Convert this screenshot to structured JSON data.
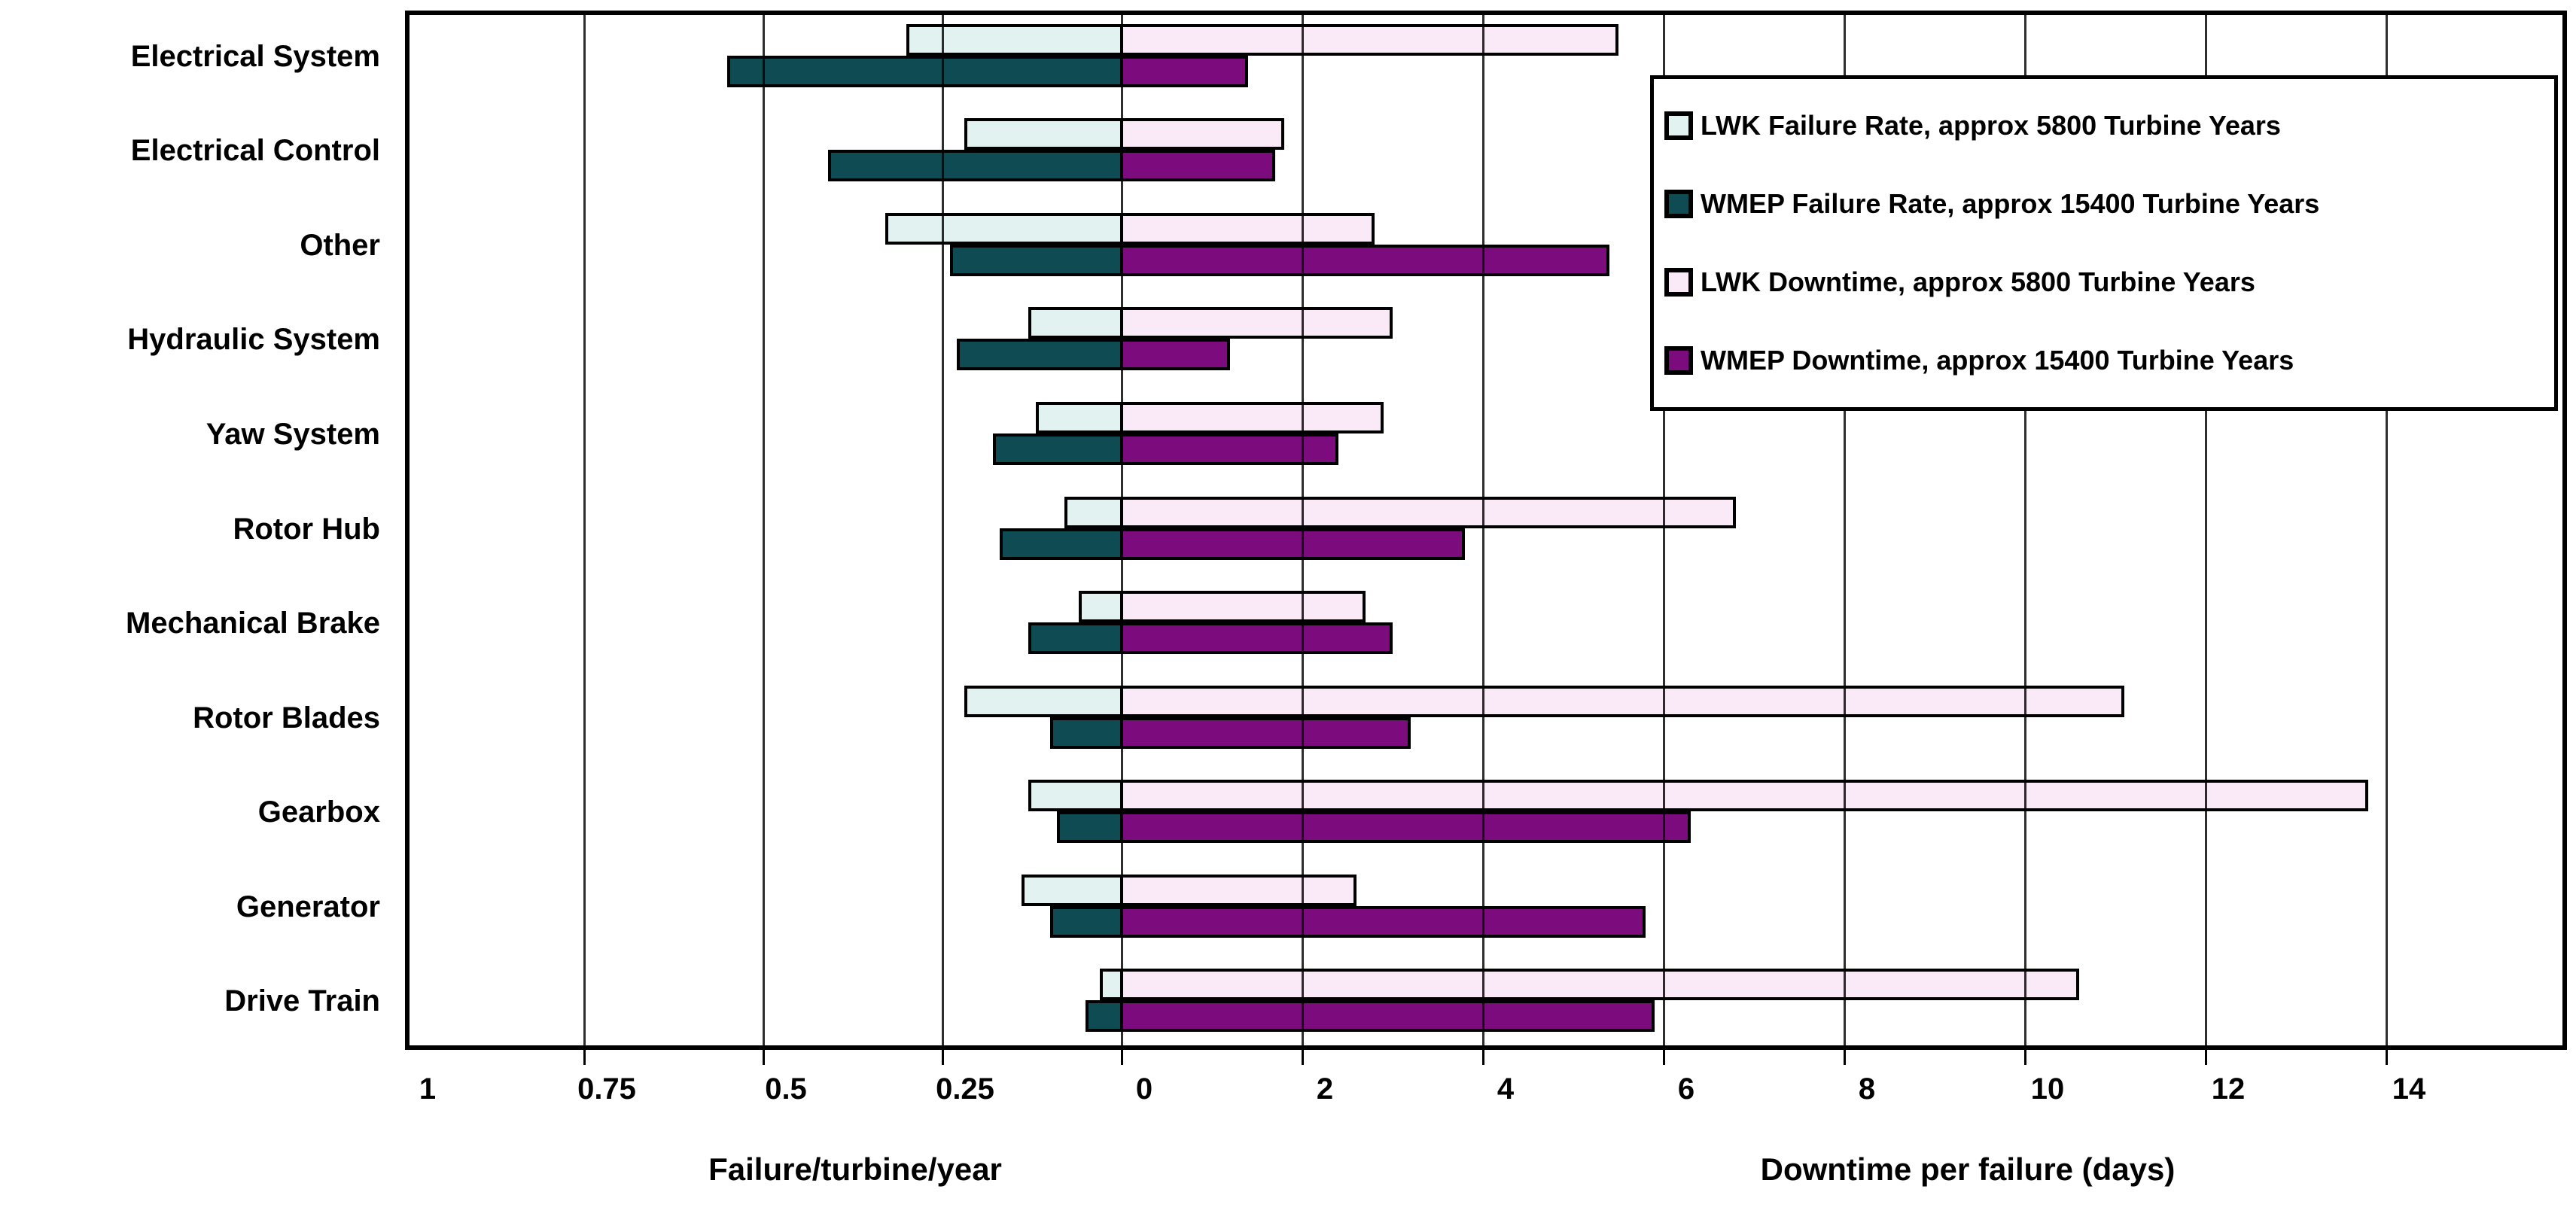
{
  "chart_data": {
    "type": "bar",
    "orientation": "horizontal-bidirectional",
    "title": "",
    "categories": [
      "Electrical System",
      "Electrical Control",
      "Other",
      "Hydraulic System",
      "Yaw System",
      "Rotor Hub",
      "Mechanical Brake",
      "Rotor Blades",
      "Gearbox",
      "Generator",
      "Drive Train"
    ],
    "series": [
      {
        "name": "LWK Failure Rate, approx 5800 Turbine Years",
        "axis": "left",
        "color": "#E1F2F1",
        "values": [
          0.3,
          0.22,
          0.33,
          0.13,
          0.12,
          0.08,
          0.06,
          0.22,
          0.13,
          0.14,
          0.03
        ]
      },
      {
        "name": "WMEP Failure Rate, approx 15400 Turbine Years",
        "axis": "left",
        "color": "#0F4B52",
        "values": [
          0.55,
          0.41,
          0.24,
          0.23,
          0.18,
          0.17,
          0.13,
          0.1,
          0.09,
          0.1,
          0.05
        ]
      },
      {
        "name": "LWK Downtime, approx 5800 Turbine Years",
        "axis": "right",
        "color": "#FAE9F7",
        "values": [
          5.5,
          1.8,
          2.8,
          3.0,
          2.9,
          6.8,
          2.7,
          11.1,
          13.8,
          2.6,
          10.6
        ]
      },
      {
        "name": "WMEP Downtime, approx 15400 Turbine Years",
        "axis": "right",
        "color": "#7C0C7E",
        "values": [
          1.4,
          1.7,
          5.4,
          1.2,
          2.4,
          3.8,
          3.0,
          3.2,
          6.3,
          5.8,
          5.9
        ]
      }
    ],
    "left_axis": {
      "label": "Failure/turbine/year",
      "tick_labels": [
        "1",
        "0.75",
        "0.5",
        "0.25"
      ],
      "tick_values": [
        1,
        0.75,
        0.5,
        0.25
      ],
      "range": [
        1,
        0
      ]
    },
    "center_tick_label": "0",
    "right_axis": {
      "label": "Downtime per failure (days)",
      "tick_labels": [
        "2",
        "4",
        "6",
        "8",
        "10",
        "12",
        "14"
      ],
      "tick_values": [
        2,
        4,
        6,
        8,
        10,
        12,
        14
      ],
      "range": [
        0,
        16
      ]
    },
    "grid": true,
    "legend_position": "top-right",
    "colors": {
      "lwk_failure": "#E1F2F1",
      "wmep_failure": "#0F4B52",
      "lwk_downtime": "#FAE9F7",
      "wmep_downtime": "#7C0C7E",
      "gridline": "#000000",
      "background": "#ffffff"
    }
  }
}
